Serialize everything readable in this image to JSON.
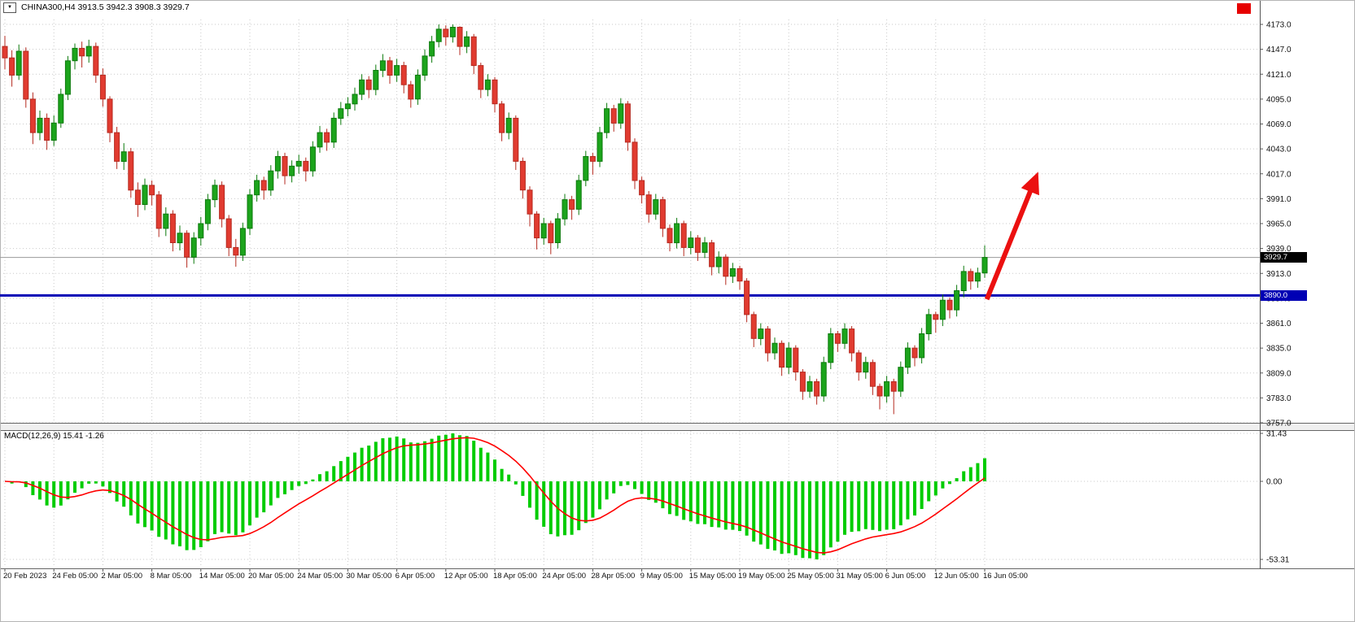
{
  "header": {
    "dropdown_icon": "▼",
    "symbol_label": "CHINA300,H4 3913.5 3942.3 3908.3 3929.7"
  },
  "colors": {
    "bull": "#1ca41c",
    "bull_edge": "#0c7a0c",
    "bear": "#e13b30",
    "bear_edge": "#b52a20",
    "grid": "#c9c9c9",
    "blue_line": "#0000b4",
    "macd_hist": "#00cc00",
    "macd_signal": "#ff0000",
    "arrow": "#eb1010",
    "axis_text": "#111111"
  },
  "chart_data": {
    "type": "candlestick",
    "symbol": "CHINA300",
    "timeframe": "H4",
    "panels": [
      "price",
      "macd"
    ],
    "last_candle": {
      "open": 3913.5,
      "high": 3942.3,
      "low": 3908.3,
      "close": 3929.7
    },
    "last_price_label": "3929.7",
    "horizontal_line": {
      "price": 3890.0,
      "label": "3890.0"
    },
    "price_axis": {
      "max": 4173.0,
      "min": 3757.0,
      "ticks": [
        "4173.0",
        "4147.0",
        "4121.0",
        "4095.0",
        "4069.0",
        "4043.0",
        "4017.0",
        "3991.0",
        "3965.0",
        "3939.0",
        "3913.0",
        "3887.0",
        "3861.0",
        "3835.0",
        "3809.0",
        "3783.0",
        "3757.0"
      ]
    },
    "time_labels": [
      "20 Feb 2023",
      "24 Feb 05:00",
      "2 Mar 05:00",
      "8 Mar 05:00",
      "14 Mar 05:00",
      "20 Mar 05:00",
      "24 Mar 05:00",
      "30 Mar 05:00",
      "6 Apr 05:00",
      "12 Apr 05:00",
      "18 Apr 05:00",
      "24 Apr 05:00",
      "28 Apr 05:00",
      "9 May 05:00",
      "15 May 05:00",
      "19 May 05:00",
      "25 May 05:00",
      "31 May 05:00",
      "6 Jun 05:00",
      "12 Jun 05:00",
      "16 Jun 05:00"
    ],
    "candles": [
      [
        4150,
        4161,
        4126,
        4138
      ],
      [
        4138,
        4146,
        4108,
        4120
      ],
      [
        4120,
        4152,
        4115,
        4145
      ],
      [
        4145,
        4149,
        4086,
        4095
      ],
      [
        4095,
        4102,
        4048,
        4060
      ],
      [
        4060,
        4083,
        4052,
        4075
      ],
      [
        4075,
        4080,
        4042,
        4052
      ],
      [
        4052,
        4078,
        4046,
        4070
      ],
      [
        4070,
        4106,
        4065,
        4100
      ],
      [
        4100,
        4140,
        4094,
        4135
      ],
      [
        4135,
        4153,
        4126,
        4148
      ],
      [
        4148,
        4155,
        4128,
        4140
      ],
      [
        4140,
        4157,
        4133,
        4150
      ],
      [
        4150,
        4154,
        4112,
        4120
      ],
      [
        4120,
        4127,
        4087,
        4095
      ],
      [
        4095,
        4098,
        4050,
        4060
      ],
      [
        4060,
        4066,
        4022,
        4030
      ],
      [
        4030,
        4049,
        4021,
        4040
      ],
      [
        4040,
        4044,
        3992,
        4000
      ],
      [
        4000,
        4008,
        3972,
        3985
      ],
      [
        3985,
        4012,
        3979,
        4005
      ],
      [
        4005,
        4010,
        3984,
        3995
      ],
      [
        3995,
        3999,
        3951,
        3960
      ],
      [
        3960,
        3982,
        3952,
        3975
      ],
      [
        3975,
        3979,
        3936,
        3945
      ],
      [
        3945,
        3963,
        3937,
        3955
      ],
      [
        3955,
        3958,
        3919,
        3930
      ],
      [
        3930,
        3956,
        3923,
        3950
      ],
      [
        3950,
        3972,
        3942,
        3965
      ],
      [
        3965,
        3996,
        3958,
        3990
      ],
      [
        3990,
        4011,
        3982,
        4005
      ],
      [
        4005,
        4009,
        3961,
        3970
      ],
      [
        3970,
        3974,
        3931,
        3940
      ],
      [
        3940,
        3949,
        3920,
        3932
      ],
      [
        3932,
        3966,
        3926,
        3960
      ],
      [
        3960,
        4001,
        3953,
        3995
      ],
      [
        3995,
        4016,
        3988,
        4010
      ],
      [
        4010,
        4014,
        3990,
        4000
      ],
      [
        4000,
        4026,
        3994,
        4020
      ],
      [
        4020,
        4041,
        4012,
        4035
      ],
      [
        4035,
        4039,
        4006,
        4015
      ],
      [
        4015,
        4031,
        4008,
        4025
      ],
      [
        4025,
        4037,
        4017,
        4030
      ],
      [
        4030,
        4034,
        4009,
        4020
      ],
      [
        4020,
        4051,
        4014,
        4045
      ],
      [
        4045,
        4067,
        4039,
        4060
      ],
      [
        4060,
        4064,
        4041,
        4050
      ],
      [
        4050,
        4081,
        4044,
        4075
      ],
      [
        4075,
        4092,
        4068,
        4085
      ],
      [
        4085,
        4097,
        4077,
        4090
      ],
      [
        4090,
        4107,
        4083,
        4100
      ],
      [
        4100,
        4121,
        4094,
        4115
      ],
      [
        4115,
        4119,
        4096,
        4105
      ],
      [
        4105,
        4131,
        4099,
        4125
      ],
      [
        4125,
        4142,
        4118,
        4135
      ],
      [
        4135,
        4139,
        4111,
        4120
      ],
      [
        4120,
        4137,
        4113,
        4130
      ],
      [
        4130,
        4134,
        4101,
        4110
      ],
      [
        4110,
        4114,
        4086,
        4095
      ],
      [
        4095,
        4126,
        4089,
        4120
      ],
      [
        4120,
        4147,
        4114,
        4140
      ],
      [
        4140,
        4161,
        4133,
        4155
      ],
      [
        4155,
        4173,
        4149,
        4168
      ],
      [
        4168,
        4172,
        4151,
        4160
      ],
      [
        4160,
        4173,
        4154,
        4170
      ],
      [
        4170,
        4171,
        4141,
        4150
      ],
      [
        4150,
        4166,
        4143,
        4160
      ],
      [
        4160,
        4163,
        4121,
        4130
      ],
      [
        4130,
        4133,
        4096,
        4105
      ],
      [
        4105,
        4121,
        4098,
        4115
      ],
      [
        4115,
        4118,
        4081,
        4090
      ],
      [
        4090,
        4093,
        4051,
        4060
      ],
      [
        4060,
        4081,
        4053,
        4075
      ],
      [
        4075,
        4078,
        4021,
        4030
      ],
      [
        4030,
        4034,
        3991,
        4000
      ],
      [
        4000,
        4004,
        3962,
        3975
      ],
      [
        3975,
        3978,
        3938,
        3950
      ],
      [
        3950,
        3971,
        3943,
        3965
      ],
      [
        3965,
        3968,
        3933,
        3945
      ],
      [
        3945,
        3976,
        3939,
        3970
      ],
      [
        3970,
        3996,
        3963,
        3990
      ],
      [
        3990,
        3994,
        3969,
        3980
      ],
      [
        3980,
        4016,
        3974,
        4010
      ],
      [
        4010,
        4041,
        4004,
        4035
      ],
      [
        4035,
        4039,
        4016,
        4030
      ],
      [
        4030,
        4066,
        4024,
        4060
      ],
      [
        4060,
        4091,
        4054,
        4085
      ],
      [
        4085,
        4089,
        4061,
        4070
      ],
      [
        4070,
        4096,
        4064,
        4090
      ],
      [
        4090,
        4093,
        4041,
        4050
      ],
      [
        4050,
        4054,
        4001,
        4010
      ],
      [
        4010,
        4014,
        3986,
        3995
      ],
      [
        3995,
        3999,
        3966,
        3975
      ],
      [
        3975,
        3996,
        3969,
        3990
      ],
      [
        3990,
        3993,
        3951,
        3960
      ],
      [
        3960,
        3964,
        3936,
        3945
      ],
      [
        3945,
        3971,
        3939,
        3965
      ],
      [
        3965,
        3968,
        3931,
        3940
      ],
      [
        3940,
        3957,
        3933,
        3950
      ],
      [
        3950,
        3953,
        3926,
        3935
      ],
      [
        3935,
        3951,
        3929,
        3945
      ],
      [
        3945,
        3948,
        3911,
        3920
      ],
      [
        3920,
        3936,
        3913,
        3930
      ],
      [
        3930,
        3933,
        3901,
        3910
      ],
      [
        3910,
        3924,
        3903,
        3918
      ],
      [
        3918,
        3921,
        3896,
        3905
      ],
      [
        3905,
        3908,
        3862,
        3870
      ],
      [
        3870,
        3873,
        3836,
        3845
      ],
      [
        3845,
        3861,
        3838,
        3855
      ],
      [
        3855,
        3858,
        3821,
        3830
      ],
      [
        3830,
        3846,
        3823,
        3840
      ],
      [
        3840,
        3843,
        3806,
        3815
      ],
      [
        3815,
        3841,
        3808,
        3835
      ],
      [
        3835,
        3838,
        3801,
        3810
      ],
      [
        3810,
        3813,
        3781,
        3790
      ],
      [
        3790,
        3806,
        3783,
        3800
      ],
      [
        3800,
        3803,
        3776,
        3785
      ],
      [
        3785,
        3826,
        3779,
        3820
      ],
      [
        3820,
        3856,
        3813,
        3850
      ],
      [
        3850,
        3853,
        3831,
        3840
      ],
      [
        3840,
        3861,
        3834,
        3855
      ],
      [
        3855,
        3858,
        3821,
        3830
      ],
      [
        3830,
        3833,
        3801,
        3810
      ],
      [
        3810,
        3826,
        3803,
        3820
      ],
      [
        3820,
        3823,
        3786,
        3795
      ],
      [
        3795,
        3798,
        3771,
        3785
      ],
      [
        3785,
        3806,
        3778,
        3800
      ],
      [
        3800,
        3803,
        3766,
        3790
      ],
      [
        3790,
        3821,
        3784,
        3815
      ],
      [
        3815,
        3841,
        3808,
        3835
      ],
      [
        3835,
        3838,
        3816,
        3825
      ],
      [
        3825,
        3856,
        3819,
        3850
      ],
      [
        3850,
        3876,
        3843,
        3870
      ],
      [
        3870,
        3873,
        3851,
        3865
      ],
      [
        3865,
        3891,
        3858,
        3885
      ],
      [
        3885,
        3888,
        3866,
        3875
      ],
      [
        3875,
        3901,
        3868,
        3895
      ],
      [
        3895,
        3921,
        3888,
        3915
      ],
      [
        3915,
        3918,
        3896,
        3905
      ],
      [
        3905,
        3919,
        3898,
        3913.5
      ],
      [
        3913.5,
        3942.3,
        3908.3,
        3929.7
      ]
    ],
    "macd": {
      "label": "MACD(12,26,9) 15.41 -1.26",
      "fast": 12,
      "slow": 26,
      "signal": 9,
      "main_value": 15.41,
      "signal_value": -1.26,
      "axis_ticks": [
        "31.43",
        "0.00",
        "-53.31"
      ]
    },
    "arrow_annotation": {
      "from_bar": 140.3,
      "from_price": 3886,
      "to_bar": 146.8,
      "to_price": 4004
    },
    "red_square_annotation": true
  }
}
